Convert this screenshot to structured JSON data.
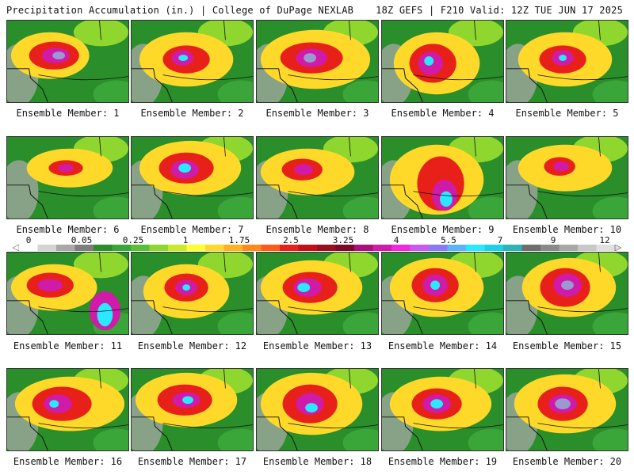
{
  "header": {
    "left": "Precipitation Accumulation (in.) | College of DuPage NEXLAB",
    "right": "18Z GEFS | F210 Valid: 12Z TUE JUN 17 2025"
  },
  "colorbar": {
    "tick_labels": [
      "0",
      "0.05",
      "0.25",
      "1",
      "1.75",
      "2.5",
      "3.25",
      "4",
      "5.5",
      "7",
      "9",
      "12"
    ],
    "colors": [
      "#ffffff",
      "#d4d4d4",
      "#a8a8a8",
      "#7e7e7e",
      "#2a8e2a",
      "#3aa63a",
      "#5bbf3a",
      "#8fd62f",
      "#c9ea2a",
      "#ffff2f",
      "#ffd92a",
      "#ffb21f",
      "#ff8a1a",
      "#ff5a1a",
      "#e8201a",
      "#c0101a",
      "#96101e",
      "#7a0a28",
      "#a8107a",
      "#d01aa8",
      "#f02ad8",
      "#c85af0",
      "#8a7af5",
      "#5ab4f5",
      "#2ae8ff",
      "#1ad2e8",
      "#2ab4b4",
      "#6e6e6e",
      "#8a8a8a",
      "#a8a8a8",
      "#c8c8c8",
      "#e0e0e0"
    ]
  },
  "panels": [
    {
      "label": "Ensemble Member: 1"
    },
    {
      "label": "Ensemble Member: 2"
    },
    {
      "label": "Ensemble Member: 3"
    },
    {
      "label": "Ensemble Member: 4"
    },
    {
      "label": "Ensemble Member: 5"
    },
    {
      "label": "Ensemble Member: 6"
    },
    {
      "label": "Ensemble Member: 7"
    },
    {
      "label": "Ensemble Member: 8"
    },
    {
      "label": "Ensemble Member: 9"
    },
    {
      "label": "Ensemble Member: 10"
    },
    {
      "label": "Ensemble Member: 11"
    },
    {
      "label": "Ensemble Member: 12"
    },
    {
      "label": "Ensemble Member: 13"
    },
    {
      "label": "Ensemble Member: 14"
    },
    {
      "label": "Ensemble Member: 15"
    },
    {
      "label": "Ensemble Member: 16"
    },
    {
      "label": "Ensemble Member: 17"
    },
    {
      "label": "Ensemble Member: 18"
    },
    {
      "label": "Ensemble Member: 19"
    },
    {
      "label": "Ensemble Member: 20"
    }
  ]
}
